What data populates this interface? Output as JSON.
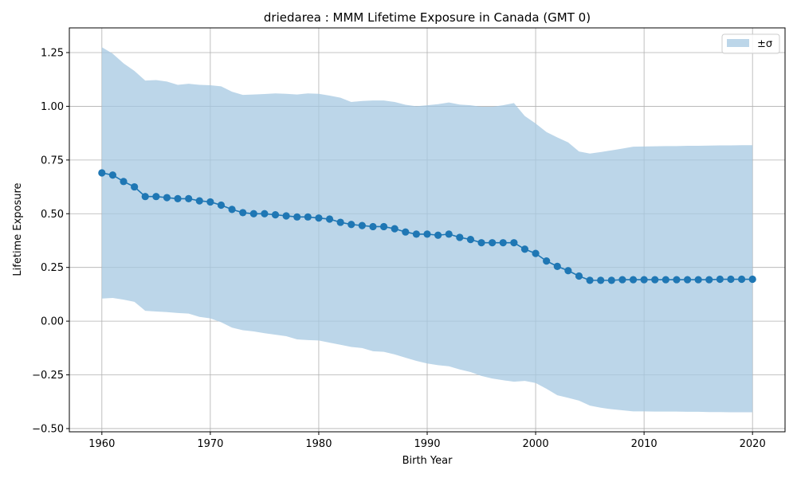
{
  "chart_data": {
    "type": "line",
    "title": "driedarea : MMM Lifetime Exposure in Canada (GMT 0)",
    "xlabel": "Birth Year",
    "ylabel": "Lifetime Exposure",
    "xlim": [
      1957,
      2023
    ],
    "ylim": [
      -0.515,
      1.365
    ],
    "xticks": [
      1960,
      1970,
      1980,
      1990,
      2000,
      2010,
      2020
    ],
    "xtick_labels": [
      "1960",
      "1970",
      "1980",
      "1990",
      "2000",
      "2010",
      "2020"
    ],
    "yticks": [
      -0.5,
      -0.25,
      0,
      0.25,
      0.5,
      0.75,
      1.0,
      1.25
    ],
    "ytick_labels": [
      "−0.50",
      "−0.25",
      "0.00",
      "0.25",
      "0.50",
      "0.75",
      "1.00",
      "1.25"
    ],
    "grid": true,
    "legend": {
      "position": "top-right",
      "entries": [
        "±σ"
      ]
    },
    "colors": {
      "mean": "#1f77b4",
      "band": "#a6c8e2",
      "grid": "#b0b0b0"
    },
    "series": [
      {
        "kind": "line-markers",
        "x": [
          1960,
          1961,
          1962,
          1963,
          1964,
          1965,
          1966,
          1967,
          1968,
          1969,
          1970,
          1971,
          1972,
          1973,
          1974,
          1975,
          1976,
          1977,
          1978,
          1979,
          1980,
          1981,
          1982,
          1983,
          1984,
          1985,
          1986,
          1987,
          1988,
          1989,
          1990,
          1991,
          1992,
          1993,
          1994,
          1995,
          1996,
          1997,
          1998,
          1999,
          2000,
          2001,
          2002,
          2003,
          2004,
          2005,
          2006,
          2007,
          2008,
          2009,
          2010,
          2011,
          2012,
          2013,
          2014,
          2015,
          2016,
          2017,
          2018,
          2019,
          2020
        ],
        "values": [
          0.69,
          0.68,
          0.65,
          0.625,
          0.58,
          0.58,
          0.575,
          0.57,
          0.57,
          0.56,
          0.555,
          0.54,
          0.52,
          0.505,
          0.5,
          0.5,
          0.495,
          0.49,
          0.485,
          0.485,
          0.48,
          0.475,
          0.46,
          0.45,
          0.445,
          0.44,
          0.44,
          0.43,
          0.415,
          0.405,
          0.405,
          0.4,
          0.405,
          0.39,
          0.38,
          0.365,
          0.365,
          0.365,
          0.365,
          0.335,
          0.315,
          0.28,
          0.255,
          0.235,
          0.21,
          0.19,
          0.19,
          0.19,
          0.193,
          0.193,
          0.193,
          0.193,
          0.193,
          0.193,
          0.193,
          0.193,
          0.193,
          0.195,
          0.195,
          0.195,
          0.195
        ]
      },
      {
        "name": "±σ",
        "kind": "band",
        "x": [
          1960,
          1961,
          1962,
          1963,
          1964,
          1965,
          1966,
          1967,
          1968,
          1969,
          1970,
          1971,
          1972,
          1973,
          1974,
          1975,
          1976,
          1977,
          1978,
          1979,
          1980,
          1981,
          1982,
          1983,
          1984,
          1985,
          1986,
          1987,
          1988,
          1989,
          1990,
          1991,
          1992,
          1993,
          1994,
          1995,
          1996,
          1997,
          1998,
          1999,
          2000,
          2001,
          2002,
          2003,
          2004,
          2005,
          2006,
          2007,
          2008,
          2009,
          2010,
          2011,
          2012,
          2013,
          2014,
          2015,
          2016,
          2017,
          2018,
          2019,
          2020
        ],
        "upper": [
          1.275,
          1.245,
          1.2,
          1.165,
          1.12,
          1.122,
          1.115,
          1.1,
          1.105,
          1.1,
          1.098,
          1.093,
          1.068,
          1.053,
          1.055,
          1.057,
          1.06,
          1.058,
          1.055,
          1.06,
          1.058,
          1.05,
          1.04,
          1.02,
          1.025,
          1.027,
          1.027,
          1.02,
          1.007,
          1.0,
          1.005,
          1.01,
          1.018,
          1.008,
          1.005,
          0.998,
          0.998,
          1.005,
          1.015,
          0.955,
          0.92,
          0.88,
          0.855,
          0.832,
          0.79,
          0.78,
          0.787,
          0.795,
          0.803,
          0.812,
          0.813,
          0.814,
          0.815,
          0.815,
          0.816,
          0.816,
          0.817,
          0.818,
          0.818,
          0.819,
          0.819
        ],
        "lower": [
          0.105,
          0.108,
          0.1,
          0.09,
          0.048,
          0.045,
          0.042,
          0.038,
          0.035,
          0.02,
          0.013,
          -0.005,
          -0.03,
          -0.042,
          -0.048,
          -0.056,
          -0.063,
          -0.07,
          -0.085,
          -0.088,
          -0.09,
          -0.1,
          -0.11,
          -0.12,
          -0.125,
          -0.14,
          -0.143,
          -0.155,
          -0.17,
          -0.185,
          -0.197,
          -0.205,
          -0.21,
          -0.225,
          -0.237,
          -0.255,
          -0.267,
          -0.275,
          -0.282,
          -0.278,
          -0.288,
          -0.315,
          -0.345,
          -0.357,
          -0.37,
          -0.393,
          -0.403,
          -0.41,
          -0.415,
          -0.42,
          -0.42,
          -0.421,
          -0.421,
          -0.421,
          -0.422,
          -0.422,
          -0.423,
          -0.423,
          -0.424,
          -0.424,
          -0.424
        ]
      }
    ]
  }
}
